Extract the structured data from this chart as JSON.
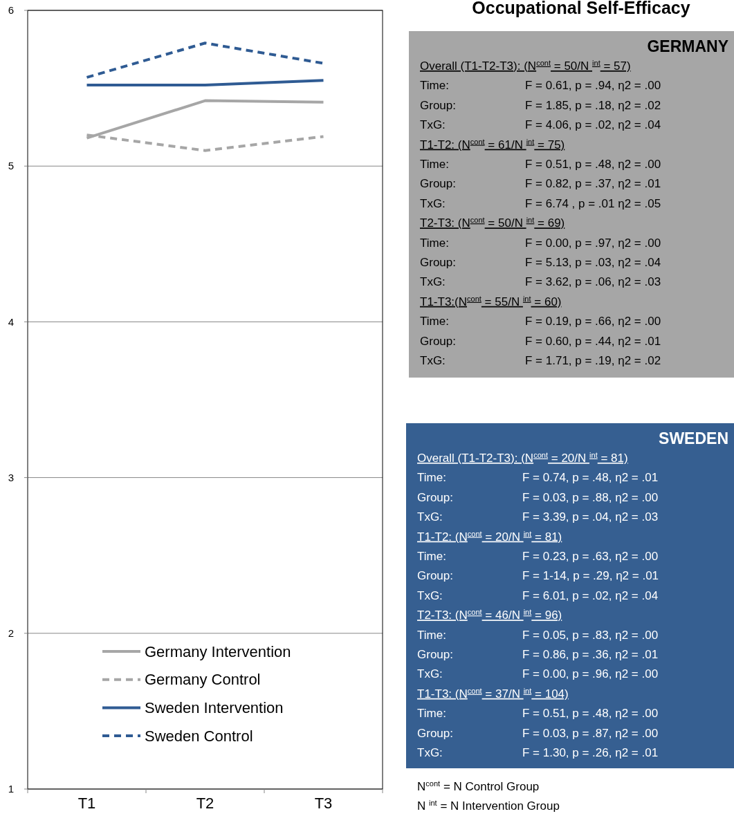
{
  "chart_data": {
    "type": "line",
    "title": "Occupational Self-Efficacy",
    "categories": [
      "T1",
      "T2",
      "T3"
    ],
    "ylim": [
      1,
      6
    ],
    "yticks": [
      1,
      2,
      3,
      4,
      5,
      6
    ],
    "grid": "y",
    "legend": "bottom left",
    "series": [
      {
        "name": "Germany Intervention",
        "color": "#a6a6a6",
        "line_style": "solid",
        "values": [
          5.18,
          5.42,
          5.41
        ]
      },
      {
        "name": "Germany Control",
        "color": "#a6a6a6",
        "line_style": "dashed",
        "values": [
          5.2,
          5.1,
          5.19
        ]
      },
      {
        "name": "Sweden Intervention",
        "color": "#2f5b93",
        "line_style": "solid",
        "values": [
          5.52,
          5.52,
          5.55
        ]
      },
      {
        "name": "Sweden Control",
        "color": "#2f5b93",
        "line_style": "dashed",
        "values": [
          5.57,
          5.79,
          5.66
        ]
      }
    ],
    "annotations": [
      "GERMANY",
      "Overall (T1-T2-T3): (N$^{cont}$ = 50/N $^{int}$ = 57)",
      "Time:",
      "F = 0.61, p = .94, η2 = .00",
      "Group:",
      "F = 1.85, p = .18, η2 = .02",
      "TxG:",
      "F = 4.06, p = .02, η2 = .04",
      "T1-T2: (N$^{cont}$ = 61/N $^{int}$ = 75)",
      "Time:",
      "F = 0.51, p = .48, η2 = .00",
      "Group:",
      "F = 0.82, p = .37, η2 = .01",
      "TxG:",
      "F = 6.74 , p = .01 η2 = .05",
      "T2-T3: (N$^{cont}$ = 50/N $^{int}$ = 69)",
      "Time:",
      "F = 0.00, p = .97, η2 = .00",
      "Group:",
      "F = 5.13, p = .03, η2 = .04",
      "TxG:",
      "F = 3.62, p = .06, η2 = .03",
      "T1-T3:(N$^{cont}$ = 55/N $^{int}$ = 60)",
      "Time:",
      "F = 0.19, p = .66, η2 = .00",
      "Group:",
      "F = 0.60, p = .44, η2 = .01",
      "TxG:",
      "F = 1.71, p = .19, η2 = .02",
      "SWEDEN",
      "Overall (T1-T2-T3): (N$^{cont}$ = 20/N $^{int}$ = 81)",
      "Time:",
      "F = 0.74, p = .48, η2 = .01",
      "Group:",
      "F = 0.03, p = .88, η2 = .00",
      "TxG:",
      "F = 3.39, p = .04, η2 = .03",
      "T1-T2: (N$^{cont}$ = 20/N $^{int}$ = 81)",
      "Time:",
      "F = 0.23, p = .63, η2 = .00",
      "Group:",
      "F = 1-14, p = .29, η2 = .01",
      "TxG:",
      "F = 6.01, p = .02, η2 = .04",
      "T2-T3: (N$^{cont}$ = 46/N $^{int}$ = 96)",
      "Time:",
      "F = 0.05, p = .83, η2 = .00",
      "Group:",
      "F = 0.86, p = .36, η2 = .01",
      "TxG:",
      "F = 0.00, p = .96, η2 = .00",
      "T1-T3: (N$^{cont}$ = 37/N $^{int}$ = 104)",
      "Time:",
      "F = 0.51, p = .48, η2 = .00",
      "Group:",
      "F = 0.03, p = .87, η2 = .00",
      "TxG:",
      "F = 1.30, p = .26, η2 = .01",
      "N$^{cont}$ = N Control Group",
      "N $^{int}$ = N Intervention Group"
    ]
  }
}
